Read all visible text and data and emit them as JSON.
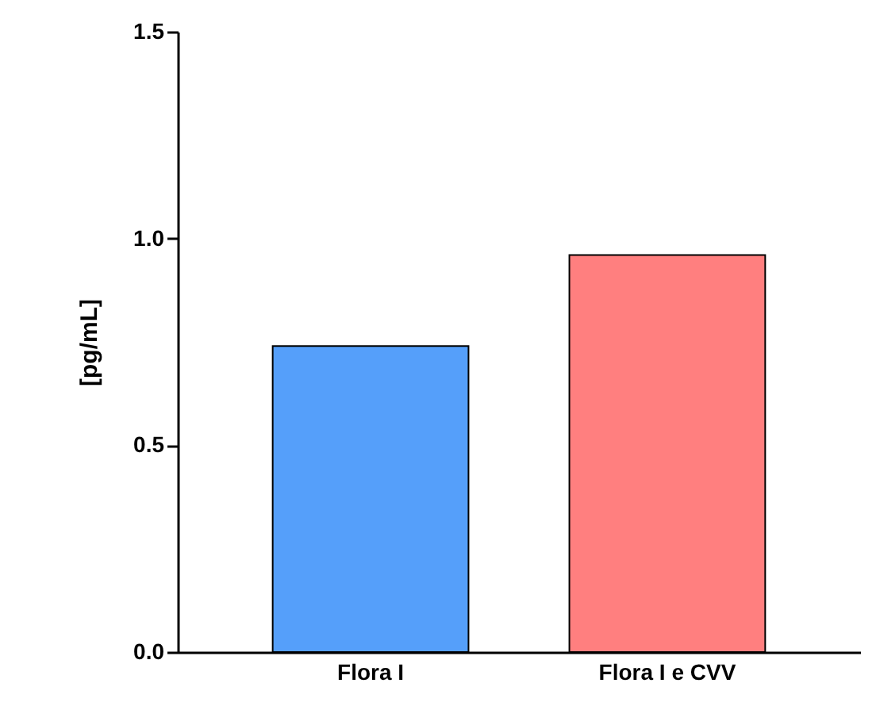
{
  "chart_data": {
    "type": "bar",
    "ylabel": "[pg/mL]",
    "categories": [
      "Flora I",
      "Flora I e CVV"
    ],
    "values": [
      0.74,
      0.96
    ],
    "colors": [
      "#559ffa",
      "#ff7f7f"
    ],
    "ylim": [
      0,
      1.5
    ],
    "yticks": [
      {
        "value": 0,
        "label": "0.0"
      },
      {
        "value": 0.5,
        "label": "0.5"
      },
      {
        "value": 1,
        "label": "1.0"
      },
      {
        "value": 1.5,
        "label": "1.5"
      }
    ],
    "grid": false
  }
}
